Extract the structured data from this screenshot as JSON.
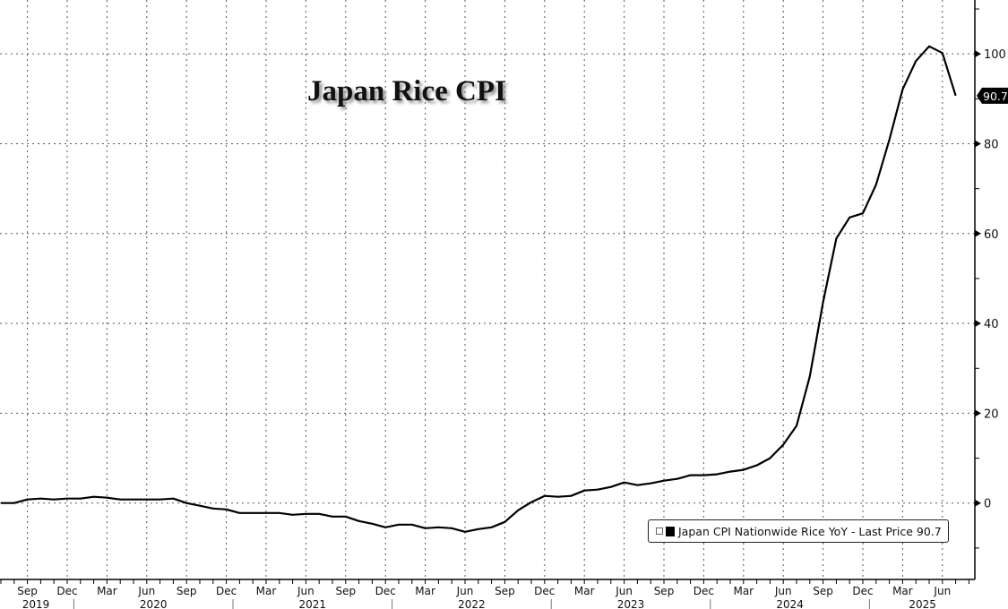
{
  "title": "Japan Rice CPI",
  "legend": {
    "label": "Japan CPI Nationwide Rice YoY - Last Price 90.7"
  },
  "chart_data": {
    "type": "line",
    "title": "Japan Rice CPI",
    "start_month": "2019-07",
    "x": [
      "2019-07",
      "2019-08",
      "2019-09",
      "2019-10",
      "2019-11",
      "2019-12",
      "2020-01",
      "2020-02",
      "2020-03",
      "2020-04",
      "2020-05",
      "2020-06",
      "2020-07",
      "2020-08",
      "2020-09",
      "2020-10",
      "2020-11",
      "2020-12",
      "2021-01",
      "2021-02",
      "2021-03",
      "2021-04",
      "2021-05",
      "2021-06",
      "2021-07",
      "2021-08",
      "2021-09",
      "2021-10",
      "2021-11",
      "2021-12",
      "2022-01",
      "2022-02",
      "2022-03",
      "2022-04",
      "2022-05",
      "2022-06",
      "2022-07",
      "2022-08",
      "2022-09",
      "2022-10",
      "2022-11",
      "2022-12",
      "2023-01",
      "2023-02",
      "2023-03",
      "2023-04",
      "2023-05",
      "2023-06",
      "2023-07",
      "2023-08",
      "2023-09",
      "2023-10",
      "2023-11",
      "2023-12",
      "2024-01",
      "2024-02",
      "2024-03",
      "2024-04",
      "2024-05",
      "2024-06",
      "2024-07",
      "2024-08",
      "2024-09",
      "2024-10",
      "2024-11",
      "2024-12",
      "2025-01",
      "2025-02",
      "2025-03",
      "2025-04",
      "2025-05",
      "2025-06",
      "2025-07"
    ],
    "series": [
      {
        "name": "Japan CPI Nationwide Rice YoY",
        "color": "#000000",
        "values": [
          0,
          0,
          0.8,
          1.0,
          0.8,
          1.0,
          1.0,
          1.4,
          1.2,
          0.8,
          0.8,
          0.8,
          0.8,
          1.0,
          0,
          -0.6,
          -1.2,
          -1.4,
          -2.2,
          -2.2,
          -2.2,
          -2.2,
          -2.6,
          -2.4,
          -2.4,
          -3.0,
          -3.0,
          -4.0,
          -4.6,
          -5.4,
          -4.8,
          -4.8,
          -5.6,
          -5.4,
          -5.6,
          -6.4,
          -5.8,
          -5.4,
          -4.2,
          -1.6,
          0.2,
          1.6,
          1.4,
          1.6,
          2.8,
          3.0,
          3.6,
          4.6,
          4.0,
          4.4,
          5.0,
          5.4,
          6.2,
          6.2,
          6.4,
          7.0,
          7.4,
          8.4,
          10.0,
          13.0,
          17.2,
          28.2,
          44.7,
          58.9,
          63.6,
          64.5,
          70.9,
          80.9,
          92.1,
          98.4,
          101.7,
          100.2,
          90.7
        ]
      }
    ],
    "last_value_label": "90.7",
    "y_ticks": [
      "0",
      "20",
      "40",
      "60",
      "80",
      "100"
    ],
    "ylim": [
      -17,
      112
    ],
    "x_month_labels": [
      "Sep",
      "Dec",
      "Mar",
      "Jun"
    ],
    "x_year_labels": [
      "2019",
      "2020",
      "2021",
      "2022",
      "2023",
      "2024",
      "2025"
    ],
    "grid": true,
    "legend_position": "bottom-right",
    "y_axis_side": "right"
  }
}
